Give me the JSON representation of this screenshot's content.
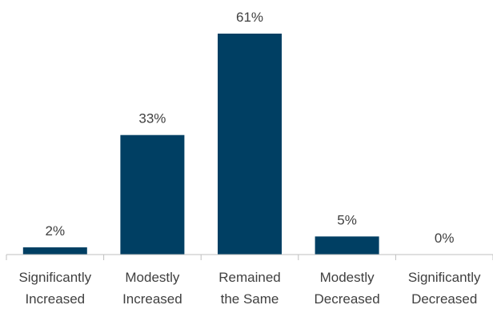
{
  "chart_data": {
    "type": "bar",
    "categories": [
      [
        "Significantly",
        "Increased"
      ],
      [
        "Modestly",
        "Increased"
      ],
      [
        "Remained",
        "the Same"
      ],
      [
        "Modestly",
        "Decreased"
      ],
      [
        "Significantly",
        "Decreased"
      ]
    ],
    "values": [
      2,
      33,
      61,
      5,
      0
    ],
    "data_labels": [
      "2%",
      "33%",
      "61%",
      "5%",
      "0%"
    ],
    "ylim": [
      0,
      61
    ],
    "grid": false,
    "legend": "none",
    "bar_color": "#003f63"
  }
}
